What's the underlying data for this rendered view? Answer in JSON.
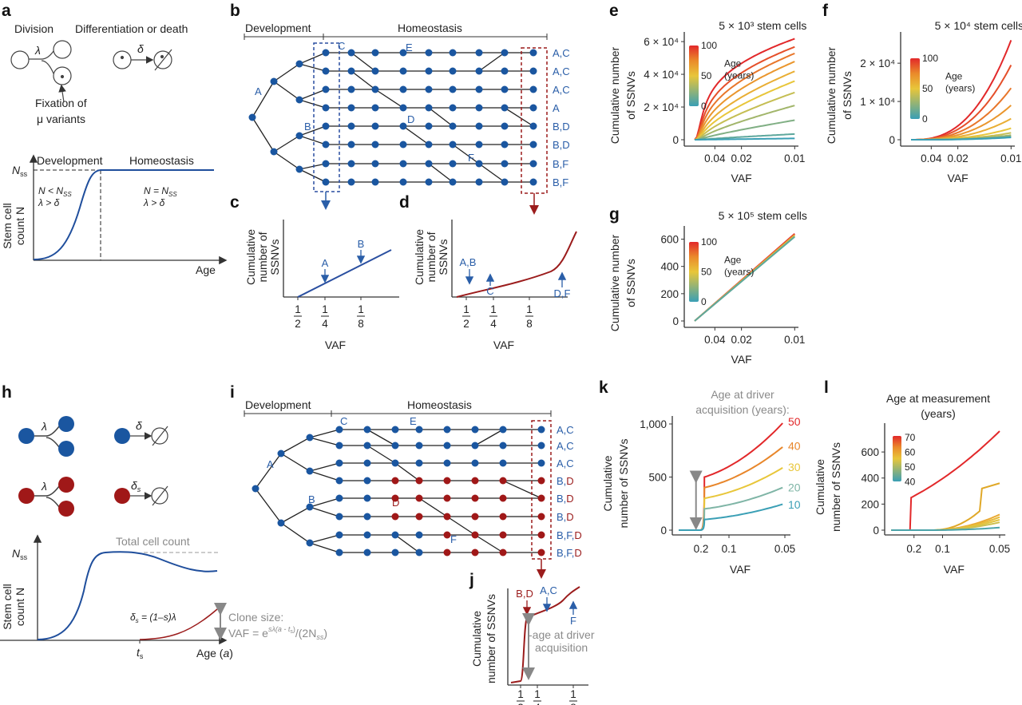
{
  "panels": {
    "a": "a",
    "b": "b",
    "c": "c",
    "d": "d",
    "e": "e",
    "f": "f",
    "g": "g",
    "h": "h",
    "i": "i",
    "j": "j",
    "k": "k",
    "l": "l"
  },
  "a": {
    "division": "Division",
    "diff": "Differentiation or death",
    "lambda": "λ",
    "delta": "δ",
    "fix1": "Fixation of",
    "fix2": "μ variants",
    "nss": "N",
    "nss_sub": "ss",
    "development": "Development",
    "homeostasis": "Homeostasis",
    "cond1a": "N < N",
    "cond1a_sub": "SS",
    "cond1b": "λ > δ",
    "cond2a": "N = N",
    "cond2a_sub": "SS",
    "cond2b": "λ > δ",
    "ylabel1": "Stem cell",
    "ylabel2": "count N",
    "xlabel": "Age"
  },
  "b": {
    "development": "Development",
    "homeostasis": "Homeostasis",
    "nodes": {
      "A": "A",
      "B": "B",
      "C": "C",
      "D": "D",
      "E": "E",
      "F": "F"
    },
    "rows": [
      "A,C",
      "A,C",
      "A,C",
      "A",
      "B,D",
      "B,D",
      "B,F",
      "B,F"
    ]
  },
  "cd": {
    "ylabel1": "Cumulative",
    "ylabel2": "number of",
    "ylabel3": "SSNVs",
    "xlabel": "VAF",
    "ticks": [
      {
        "n": "1",
        "d": "2"
      },
      {
        "n": "1",
        "d": "4"
      },
      {
        "n": "1",
        "d": "8"
      }
    ],
    "c_marks": [
      "A",
      "B"
    ],
    "d_marks": [
      "A,B",
      "C",
      "D,F"
    ]
  },
  "efg": {
    "ylabel1": "Cumulative number",
    "ylabel2": "of SSNVs",
    "xlabel": "VAF",
    "xticks": [
      "0.04",
      "0.02",
      "0.01"
    ],
    "cbar_title1": "Age",
    "cbar_title2": "(years)",
    "cbar_ticks": [
      "100",
      "50",
      "0"
    ]
  },
  "e": {
    "title": "5 × 10³ stem cells",
    "yticks": [
      "6 × 10⁴",
      "4 × 10⁴",
      "2 × 10⁴",
      "0"
    ],
    "ages": [
      100,
      90,
      80,
      70,
      60,
      50,
      40,
      30,
      20,
      10,
      0
    ],
    "end_values": [
      62000,
      57000,
      53000,
      48000,
      42000,
      36000,
      29000,
      21000,
      12000,
      3500,
      800
    ]
  },
  "f": {
    "title": "5 × 10⁴ stem cells",
    "yticks": [
      "2 × 10⁴",
      "1 × 10⁴",
      "0"
    ],
    "ages": [
      100,
      90,
      80,
      70,
      60,
      50,
      40,
      30,
      20,
      10,
      0
    ],
    "end_values": [
      26000,
      19500,
      13500,
      9000,
      5500,
      3000,
      1800,
      1200,
      900,
      700,
      600
    ]
  },
  "g": {
    "title": "5 × 10⁵ stem cells",
    "yticks": [
      "600",
      "400",
      "200",
      "0"
    ],
    "end_value": 640
  },
  "h": {
    "lambda": "λ",
    "delta": "δ",
    "delta_s": "δ",
    "delta_s_sub": "s",
    "nss": "N",
    "nss_sub": "ss",
    "total": "Total cell count",
    "ds_eq": "δ",
    "ds_eq_sub": "s",
    "ds_eq_rest": " = (1–s)λ",
    "clone1": "Clone size:",
    "clone2": "VAF = e",
    "clone2_sup": "sλ(a - t",
    "clone2_sup2": "s",
    "clone2_sup3": ")",
    "clone2_rest": "/(2N",
    "clone2_sub": "ss",
    "clone2_end": ")",
    "ts": "t",
    "ts_sub": "s",
    "xlabel": "Age (",
    "xlabel_a": "a",
    "xlabel_end": ")",
    "ylabel1": "Stem cell",
    "ylabel2": "count N"
  },
  "i": {
    "development": "Development",
    "homeostasis": "Homeostasis",
    "nodes": {
      "A": "A",
      "B": "B",
      "C": "C",
      "D": "D",
      "E": "E",
      "F": "F"
    },
    "rows": [
      [
        "A,C",
        ""
      ],
      [
        "A,C",
        ""
      ],
      [
        "A,C",
        ""
      ],
      [
        "B,",
        ""
      ],
      [
        "B,",
        ""
      ],
      [
        "B,",
        ""
      ],
      [
        "B,F,",
        ""
      ],
      [
        "B,F,",
        ""
      ]
    ],
    "red_suffix": "D"
  },
  "j": {
    "ylabel1": "Cumulative",
    "ylabel2": "number of SSNVs",
    "xlabel": "VAF",
    "mark_bd": "B,D",
    "mark_ac": "A,C",
    "mark_f": "F",
    "note1": "-age at driver",
    "note2": "acquisition"
  },
  "k": {
    "title1": "Age at driver",
    "title2": "acquisition (years):",
    "ylabel1": "Cumulative",
    "ylabel2": "number of SSNVs",
    "xlabel": "VAF",
    "yticks": [
      "1,000",
      "500",
      "0"
    ],
    "xticks": [
      "0.2",
      "0.1",
      "0.05"
    ],
    "ages": [
      "50",
      "40",
      "30",
      "20",
      "10"
    ],
    "jump_values": [
      500,
      400,
      300,
      200,
      100
    ],
    "end_values": [
      1030,
      800,
      600,
      410,
      250
    ]
  },
  "l": {
    "title1": "Age at measurement",
    "title2": "(years)",
    "ylabel1": "Cumulative",
    "ylabel2": "number of SSNVs",
    "xlabel": "VAF",
    "yticks": [
      "600",
      "400",
      "200",
      "0"
    ],
    "xticks": [
      "0.2",
      "0.1",
      "0.05"
    ],
    "cbar_ticks": [
      "70",
      "60",
      "50",
      "40"
    ]
  },
  "colors": {
    "blue": "#1f4e9c",
    "red": "#9b1c1c",
    "node_blue": "#1a56a0",
    "node_red": "#a01818",
    "grey": "#8a8a8a"
  }
}
